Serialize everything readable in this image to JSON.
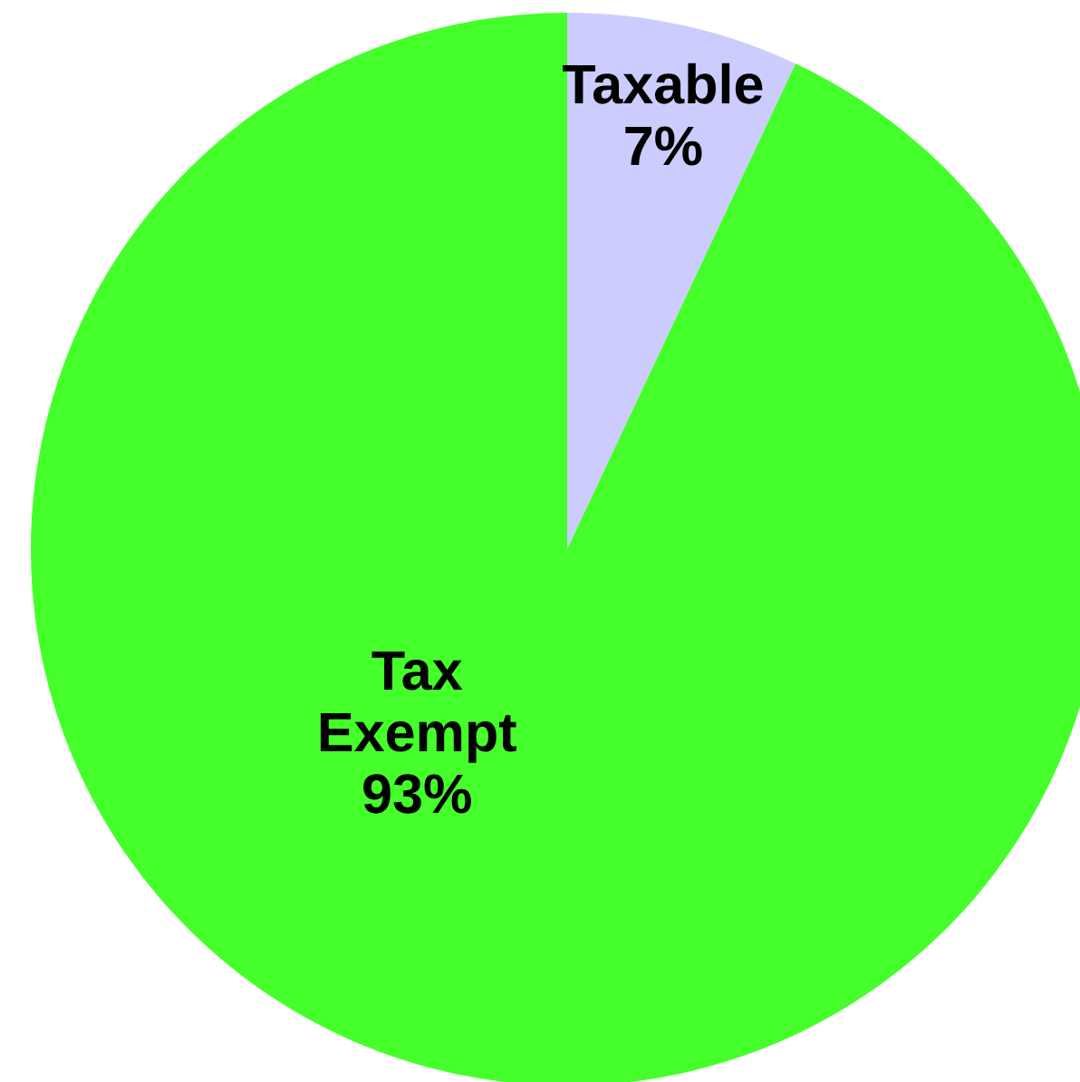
{
  "chart_data": {
    "type": "pie",
    "categories": [
      "Taxable",
      "Tax Exempt"
    ],
    "values": [
      7,
      93
    ],
    "value_labels": [
      "7%",
      "93%"
    ],
    "colors": [
      "#ccccff",
      "#44ff2a"
    ]
  }
}
